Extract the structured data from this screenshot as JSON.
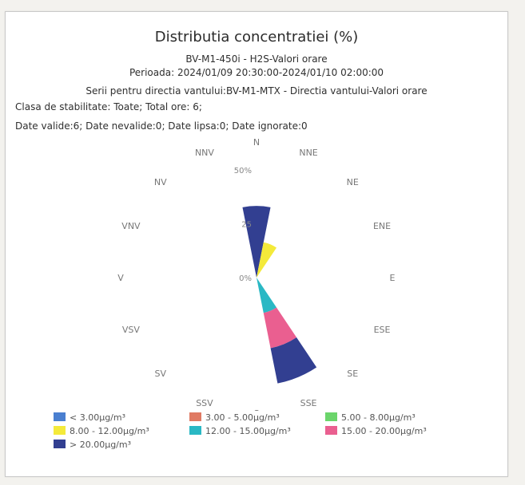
{
  "header": {
    "title": "Distributia concentratiei (%)",
    "station": "BV-M1-450i - H2S-Valori orare",
    "period": "Perioada: 2024/01/09 20:30:00-2024/01/10 02:00:00",
    "series": "Serii pentru directia vantului:BV-M1-MTX - Directia vantului-Valori orare",
    "stability": "Clasa de stabilitate: Toate; Total ore: 6;",
    "validity": "Date valide:6; Date nevalide:0; Date lipsa:0; Date ignorate:0"
  },
  "chart_data": {
    "type": "polar-stacked-bar",
    "title": "Distributia concentratiei (%)",
    "directions": [
      "N",
      "NNE",
      "NE",
      "ENE",
      "E",
      "ESE",
      "SE",
      "SSE",
      "S",
      "SSV",
      "SV",
      "VSV",
      "V",
      "VNV",
      "NV",
      "NNV"
    ],
    "radial_ticks": [
      {
        "value": 0,
        "label": "0%"
      },
      {
        "value": 25,
        "label": "25"
      },
      {
        "value": 50,
        "label": "50%"
      }
    ],
    "rmax": 50,
    "series": [
      {
        "name": "< 3.00µg/m³",
        "color": "#4a7fd0",
        "values": [
          0,
          0,
          0,
          0,
          0,
          0,
          0,
          0,
          0,
          0,
          0,
          0,
          0,
          0,
          0,
          0
        ]
      },
      {
        "name": "3.00 - 5.00µg/m³",
        "color": "#e07a63",
        "values": [
          0,
          0,
          0,
          0,
          0,
          0,
          0,
          0,
          0,
          0,
          0,
          0,
          0,
          0,
          0,
          0
        ]
      },
      {
        "name": "5.00 - 8.00µg/m³",
        "color": "#6bd56b",
        "values": [
          0,
          0,
          0,
          0,
          0,
          0,
          0,
          0,
          0,
          0,
          0,
          0,
          0,
          0,
          0,
          0
        ]
      },
      {
        "name": "8.00 - 12.00µg/m³",
        "color": "#f4ea3a",
        "values": [
          0,
          16.7,
          0,
          0,
          0,
          0,
          0,
          0,
          0,
          0,
          0,
          0,
          0,
          0,
          0,
          0
        ]
      },
      {
        "name": "12.00 - 15.00µg/m³",
        "color": "#2ab8c4",
        "values": [
          0,
          0,
          0,
          0,
          0,
          0,
          0,
          16.7,
          0,
          0,
          0,
          0,
          0,
          0,
          0,
          0
        ]
      },
      {
        "name": "15.00 - 20.00µg/m³",
        "color": "#ea5f90",
        "values": [
          0,
          0,
          0,
          0,
          0,
          0,
          0,
          16.7,
          0,
          0,
          0,
          0,
          0,
          0,
          0,
          0
        ]
      },
      {
        "name": "> 20.00µg/m³",
        "color": "#323f91",
        "values": [
          33.3,
          0,
          0,
          0,
          0,
          0,
          0,
          16.7,
          0,
          0,
          0,
          0,
          0,
          0,
          0,
          0
        ]
      }
    ]
  }
}
